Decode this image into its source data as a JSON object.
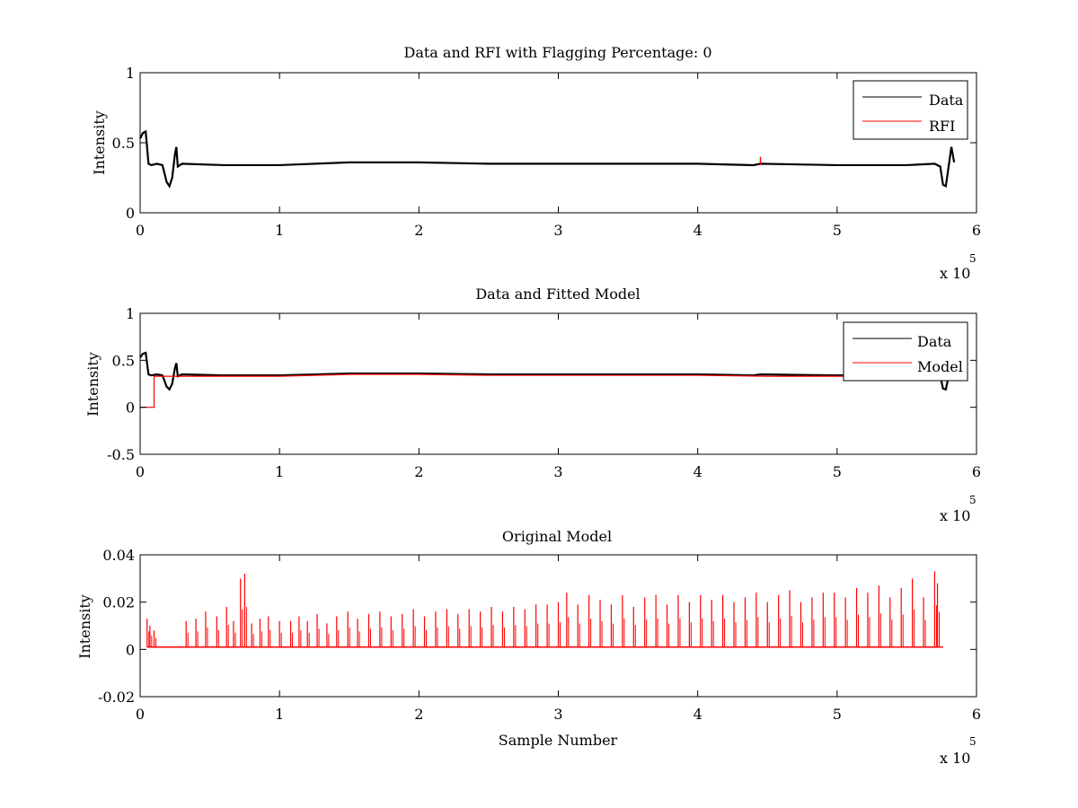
{
  "chart_data": [
    {
      "type": "line",
      "title": "Data and RFI with Flagging Percentage: 0",
      "xlabel": "",
      "ylabel": "Intensity",
      "xlim": [
        0,
        600000
      ],
      "ylim": [
        0,
        1
      ],
      "xticks": [
        0,
        100000,
        200000,
        300000,
        400000,
        500000,
        600000
      ],
      "xtick_labels": [
        "0",
        "1",
        "2",
        "3",
        "4",
        "5",
        "6"
      ],
      "yticks": [
        0,
        0.5,
        1
      ],
      "ytick_labels": [
        "0",
        "0.5",
        "1"
      ],
      "x_exponent": {
        "prefix": "x 10",
        "power": "5"
      },
      "grid": false,
      "legend_position": "top-right",
      "series": [
        {
          "name": "Data",
          "color": "#000000",
          "points": [
            [
              0,
              0.53
            ],
            [
              2000,
              0.57
            ],
            [
              4000,
              0.58
            ],
            [
              6000,
              0.35
            ],
            [
              8000,
              0.34
            ],
            [
              12000,
              0.35
            ],
            [
              16000,
              0.34
            ],
            [
              19000,
              0.22
            ],
            [
              21000,
              0.19
            ],
            [
              23000,
              0.25
            ],
            [
              25000,
              0.42
            ],
            [
              26000,
              0.47
            ],
            [
              27000,
              0.33
            ],
            [
              30000,
              0.35
            ],
            [
              60000,
              0.34
            ],
            [
              100000,
              0.34
            ],
            [
              150000,
              0.36
            ],
            [
              200000,
              0.36
            ],
            [
              250000,
              0.35
            ],
            [
              300000,
              0.35
            ],
            [
              350000,
              0.35
            ],
            [
              400000,
              0.35
            ],
            [
              440000,
              0.34
            ],
            [
              445000,
              0.35
            ],
            [
              500000,
              0.34
            ],
            [
              550000,
              0.34
            ],
            [
              570000,
              0.35
            ],
            [
              574000,
              0.33
            ],
            [
              576000,
              0.2
            ],
            [
              578000,
              0.19
            ],
            [
              580000,
              0.33
            ],
            [
              582000,
              0.47
            ],
            [
              584000,
              0.36
            ]
          ]
        },
        {
          "name": "RFI",
          "color": "#ff0000",
          "points": [
            [
              444800,
              0.34
            ],
            [
              445000,
              0.4
            ],
            [
              445200,
              0.34
            ]
          ]
        }
      ]
    },
    {
      "type": "line",
      "title": "Data and Fitted Model",
      "xlabel": "",
      "ylabel": "Intensity",
      "xlim": [
        0,
        600000
      ],
      "ylim": [
        -0.5,
        1
      ],
      "xticks": [
        0,
        100000,
        200000,
        300000,
        400000,
        500000,
        600000
      ],
      "xtick_labels": [
        "0",
        "1",
        "2",
        "3",
        "4",
        "5",
        "6"
      ],
      "yticks": [
        -0.5,
        0,
        0.5,
        1
      ],
      "ytick_labels": [
        "-0.5",
        "0",
        "0.5",
        "1"
      ],
      "x_exponent": {
        "prefix": "x 10",
        "power": "5"
      },
      "grid": false,
      "legend_position": "top-right",
      "series": [
        {
          "name": "Data",
          "color": "#000000",
          "points": [
            [
              0,
              0.53
            ],
            [
              2000,
              0.57
            ],
            [
              4000,
              0.58
            ],
            [
              6000,
              0.35
            ],
            [
              8000,
              0.34
            ],
            [
              12000,
              0.35
            ],
            [
              16000,
              0.34
            ],
            [
              19000,
              0.22
            ],
            [
              21000,
              0.19
            ],
            [
              23000,
              0.25
            ],
            [
              25000,
              0.42
            ],
            [
              26000,
              0.47
            ],
            [
              27000,
              0.33
            ],
            [
              30000,
              0.35
            ],
            [
              60000,
              0.34
            ],
            [
              100000,
              0.34
            ],
            [
              150000,
              0.36
            ],
            [
              200000,
              0.36
            ],
            [
              250000,
              0.35
            ],
            [
              300000,
              0.35
            ],
            [
              350000,
              0.35
            ],
            [
              400000,
              0.35
            ],
            [
              440000,
              0.34
            ],
            [
              445000,
              0.35
            ],
            [
              500000,
              0.34
            ],
            [
              550000,
              0.34
            ],
            [
              570000,
              0.35
            ],
            [
              574000,
              0.33
            ],
            [
              576000,
              0.2
            ],
            [
              578000,
              0.19
            ],
            [
              580000,
              0.33
            ],
            [
              582000,
              0.47
            ],
            [
              584000,
              0.36
            ]
          ]
        },
        {
          "name": "Model",
          "color": "#ff0000",
          "points": [
            [
              0,
              0
            ],
            [
              10000,
              0
            ],
            [
              10000,
              0.33
            ],
            [
              30000,
              0.33
            ],
            [
              60000,
              0.33
            ],
            [
              100000,
              0.33
            ],
            [
              150000,
              0.35
            ],
            [
              200000,
              0.35
            ],
            [
              250000,
              0.34
            ],
            [
              300000,
              0.34
            ],
            [
              350000,
              0.34
            ],
            [
              400000,
              0.34
            ],
            [
              450000,
              0.33
            ],
            [
              500000,
              0.33
            ],
            [
              550000,
              0.33
            ],
            [
              584000,
              0.33
            ]
          ]
        }
      ]
    },
    {
      "type": "line",
      "title": "Original Model",
      "xlabel": "Sample Number",
      "ylabel": "Intensity",
      "xlim": [
        0,
        600000
      ],
      "ylim": [
        -0.02,
        0.04
      ],
      "xticks": [
        0,
        100000,
        200000,
        300000,
        400000,
        500000,
        600000
      ],
      "xtick_labels": [
        "0",
        "1",
        "2",
        "3",
        "4",
        "5",
        "6"
      ],
      "yticks": [
        -0.02,
        0,
        0.02,
        0.04
      ],
      "ytick_labels": [
        "-0.02",
        "0",
        "0.02",
        "0.04"
      ],
      "x_exponent": {
        "prefix": "x 10",
        "power": "5"
      },
      "grid": false,
      "series": [
        {
          "name": "",
          "color": "#ff0000",
          "baseline": 0.001,
          "spikes": [
            [
              5000,
              0.013
            ],
            [
              7000,
              0.01
            ],
            [
              10000,
              0.008
            ],
            [
              33000,
              0.012
            ],
            [
              40000,
              0.013
            ],
            [
              47000,
              0.016
            ],
            [
              55000,
              0.014
            ],
            [
              62000,
              0.018
            ],
            [
              67000,
              0.012
            ],
            [
              72000,
              0.03
            ],
            [
              75000,
              0.032
            ],
            [
              80000,
              0.011
            ],
            [
              86000,
              0.013
            ],
            [
              92000,
              0.014
            ],
            [
              100000,
              0.012
            ],
            [
              108000,
              0.012
            ],
            [
              114000,
              0.014
            ],
            [
              120000,
              0.012
            ],
            [
              127000,
              0.015
            ],
            [
              134000,
              0.011
            ],
            [
              141000,
              0.014
            ],
            [
              149000,
              0.016
            ],
            [
              156000,
              0.013
            ],
            [
              164000,
              0.015
            ],
            [
              172000,
              0.016
            ],
            [
              180000,
              0.014
            ],
            [
              188000,
              0.015
            ],
            [
              196000,
              0.017
            ],
            [
              204000,
              0.014
            ],
            [
              212000,
              0.016
            ],
            [
              220000,
              0.017
            ],
            [
              228000,
              0.015
            ],
            [
              236000,
              0.017
            ],
            [
              244000,
              0.016
            ],
            [
              252000,
              0.018
            ],
            [
              260000,
              0.016
            ],
            [
              268000,
              0.018
            ],
            [
              276000,
              0.017
            ],
            [
              284000,
              0.019
            ],
            [
              292000,
              0.019
            ],
            [
              300000,
              0.02
            ],
            [
              306000,
              0.024
            ],
            [
              314000,
              0.019
            ],
            [
              322000,
              0.023
            ],
            [
              330000,
              0.021
            ],
            [
              338000,
              0.019
            ],
            [
              346000,
              0.023
            ],
            [
              354000,
              0.018
            ],
            [
              362000,
              0.022
            ],
            [
              370000,
              0.023
            ],
            [
              378000,
              0.019
            ],
            [
              386000,
              0.023
            ],
            [
              394000,
              0.02
            ],
            [
              402000,
              0.023
            ],
            [
              410000,
              0.021
            ],
            [
              418000,
              0.023
            ],
            [
              426000,
              0.02
            ],
            [
              434000,
              0.022
            ],
            [
              442000,
              0.024
            ],
            [
              450000,
              0.02
            ],
            [
              458000,
              0.023
            ],
            [
              466000,
              0.025
            ],
            [
              474000,
              0.02
            ],
            [
              482000,
              0.022
            ],
            [
              490000,
              0.024
            ],
            [
              498000,
              0.024
            ],
            [
              506000,
              0.022
            ],
            [
              514000,
              0.026
            ],
            [
              522000,
              0.024
            ],
            [
              530000,
              0.027
            ],
            [
              538000,
              0.022
            ],
            [
              546000,
              0.026
            ],
            [
              554000,
              0.03
            ],
            [
              562000,
              0.022
            ],
            [
              570000,
              0.033
            ],
            [
              572000,
              0.028
            ],
            [
              576000,
              0.001
            ]
          ]
        }
      ]
    }
  ]
}
